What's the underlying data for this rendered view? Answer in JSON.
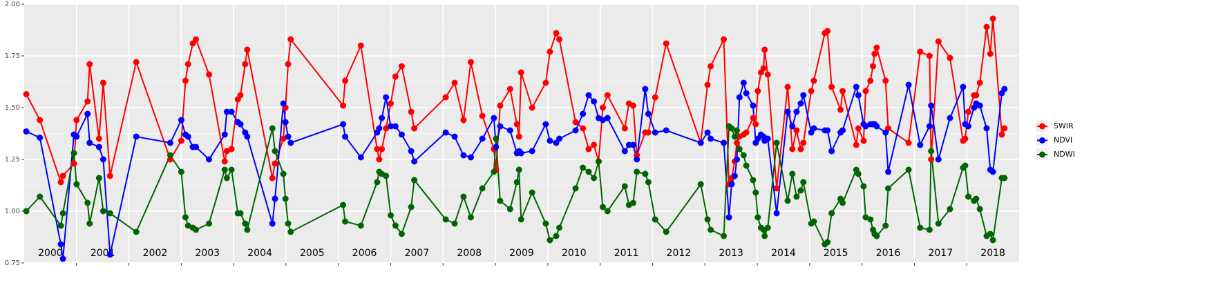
{
  "chart_data": {
    "type": "line",
    "x": [
      2000.04,
      2000.3,
      2000.7,
      2000.74,
      2000.95,
      2001.0,
      2001.21,
      2001.25,
      2001.43,
      2001.51,
      2001.64,
      2002.14,
      2002.79,
      2003.0,
      2003.08,
      2003.13,
      2003.22,
      2003.28,
      2003.53,
      2003.83,
      2003.87,
      2003.96,
      2004.08,
      2004.13,
      2004.22,
      2004.26,
      2004.74,
      2004.79,
      2004.95,
      2004.99,
      2005.04,
      2005.09,
      2006.09,
      2006.13,
      2006.43,
      2006.74,
      2006.78,
      2006.83,
      2006.91,
      2007.0,
      2007.09,
      2007.21,
      2007.39,
      2007.45,
      2008.05,
      2008.22,
      2008.39,
      2008.53,
      2008.75,
      2008.97,
      2009.01,
      2009.09,
      2009.28,
      2009.41,
      2009.45,
      2009.49,
      2009.7,
      2009.96,
      2010.04,
      2010.16,
      2010.22,
      2010.53,
      2010.67,
      2010.78,
      2010.88,
      2010.97,
      2011.05,
      2011.14,
      2011.47,
      2011.55,
      2011.63,
      2011.7,
      2011.86,
      2011.92,
      2012.05,
      2012.26,
      2012.92,
      2013.05,
      2013.11,
      2013.36,
      2013.46,
      2013.51,
      2013.57,
      2013.61,
      2013.66,
      2013.74,
      2013.79,
      2013.92,
      2013.97,
      2014.01,
      2014.07,
      2014.12,
      2014.14,
      2014.2,
      2014.37,
      2014.58,
      2014.67,
      2014.75,
      2014.83,
      2014.88,
      2015.03,
      2015.08,
      2015.29,
      2015.34,
      2015.42,
      2015.59,
      2015.63,
      2015.89,
      2015.93,
      2016.03,
      2016.07,
      2016.16,
      2016.21,
      2016.24,
      2016.28,
      2016.45,
      2016.5,
      2016.89,
      2017.11,
      2017.29,
      2017.32,
      2017.46,
      2017.68,
      2017.93,
      2017.97,
      2018.03,
      2018.14,
      2018.18,
      2018.25,
      2018.38,
      2018.45,
      2018.5,
      2018.67,
      2018.72
    ],
    "series": [
      {
        "name": "SWIR",
        "color": "#ff0000",
        "values": [
          1.565,
          1.44,
          1.14,
          1.17,
          1.23,
          1.44,
          1.53,
          1.71,
          1.35,
          1.62,
          1.17,
          1.72,
          1.25,
          1.34,
          1.63,
          1.71,
          1.81,
          1.83,
          1.66,
          1.24,
          1.29,
          1.3,
          1.54,
          1.56,
          1.71,
          1.78,
          1.16,
          1.23,
          1.35,
          1.5,
          1.71,
          1.83,
          1.51,
          1.63,
          1.8,
          1.3,
          1.25,
          1.3,
          1.4,
          1.52,
          1.65,
          1.7,
          1.48,
          1.4,
          1.55,
          1.62,
          1.44,
          1.72,
          1.46,
          1.3,
          1.2,
          1.51,
          1.59,
          1.42,
          1.36,
          1.67,
          1.5,
          1.62,
          1.77,
          1.86,
          1.83,
          1.43,
          1.4,
          1.3,
          1.32,
          1.24,
          1.5,
          1.56,
          1.4,
          1.52,
          1.51,
          1.27,
          1.38,
          1.38,
          1.55,
          1.81,
          1.33,
          1.61,
          1.7,
          1.83,
          1.13,
          1.16,
          1.24,
          1.33,
          1.36,
          1.37,
          1.38,
          1.45,
          1.42,
          1.58,
          1.67,
          1.69,
          1.78,
          1.66,
          1.11,
          1.6,
          1.3,
          1.39,
          1.3,
          1.33,
          1.58,
          1.63,
          1.86,
          1.87,
          1.6,
          1.49,
          1.58,
          1.32,
          1.4,
          1.34,
          1.58,
          1.63,
          1.7,
          1.76,
          1.79,
          1.63,
          1.4,
          1.33,
          1.77,
          1.75,
          1.25,
          1.82,
          1.74,
          1.34,
          1.35,
          1.48,
          1.56,
          1.56,
          1.62,
          1.89,
          1.76,
          1.93,
          1.37,
          1.4
        ]
      },
      {
        "name": "NDVI",
        "color": "#0000ff",
        "values": [
          1.385,
          1.355,
          0.84,
          0.77,
          1.37,
          1.36,
          1.47,
          1.33,
          1.31,
          1.25,
          0.79,
          1.36,
          1.33,
          1.44,
          1.37,
          1.36,
          1.31,
          1.31,
          1.25,
          1.37,
          1.48,
          1.48,
          1.43,
          1.42,
          1.38,
          1.36,
          0.94,
          1.06,
          1.52,
          1.43,
          1.36,
          1.33,
          1.42,
          1.36,
          1.26,
          1.38,
          1.4,
          1.45,
          1.55,
          1.41,
          1.41,
          1.37,
          1.29,
          1.24,
          1.38,
          1.36,
          1.27,
          1.26,
          1.35,
          1.45,
          1.31,
          1.41,
          1.39,
          1.28,
          1.29,
          1.28,
          1.29,
          1.42,
          1.34,
          1.33,
          1.35,
          1.39,
          1.47,
          1.56,
          1.53,
          1.45,
          1.44,
          1.45,
          1.29,
          1.32,
          1.32,
          1.25,
          1.59,
          1.47,
          1.38,
          1.39,
          1.33,
          1.38,
          1.35,
          1.33,
          0.97,
          1.13,
          1.17,
          1.25,
          1.55,
          1.62,
          1.57,
          1.51,
          1.33,
          1.35,
          1.37,
          1.36,
          1.34,
          1.35,
          0.99,
          1.48,
          1.41,
          1.48,
          1.52,
          1.56,
          1.38,
          1.4,
          1.39,
          1.39,
          1.29,
          1.38,
          1.39,
          1.6,
          1.56,
          1.42,
          1.41,
          1.42,
          1.42,
          1.42,
          1.41,
          1.38,
          1.19,
          1.61,
          1.32,
          1.41,
          1.51,
          1.25,
          1.45,
          1.6,
          1.42,
          1.41,
          1.5,
          1.52,
          1.51,
          1.4,
          1.2,
          1.19,
          1.57,
          1.59
        ]
      },
      {
        "name": "NDWI",
        "color": "#006400",
        "values": [
          1.0,
          1.07,
          0.93,
          0.99,
          1.28,
          1.13,
          1.04,
          0.94,
          1.16,
          1.0,
          0.99,
          0.9,
          1.27,
          1.19,
          0.97,
          0.93,
          0.92,
          0.91,
          0.94,
          1.2,
          1.16,
          1.2,
          0.99,
          0.99,
          0.94,
          0.91,
          1.4,
          1.29,
          1.18,
          1.06,
          0.94,
          0.9,
          1.03,
          0.95,
          0.93,
          1.14,
          1.19,
          1.18,
          1.17,
          0.98,
          0.93,
          0.89,
          1.02,
          1.15,
          0.96,
          0.94,
          1.07,
          0.97,
          1.11,
          1.19,
          1.35,
          1.05,
          1.01,
          1.14,
          1.2,
          0.96,
          1.09,
          0.94,
          0.86,
          0.88,
          0.92,
          1.11,
          1.21,
          1.19,
          1.16,
          1.24,
          1.02,
          1.0,
          1.12,
          1.03,
          1.04,
          1.19,
          1.18,
          1.14,
          0.96,
          0.9,
          1.13,
          0.96,
          0.91,
          0.88,
          1.41,
          1.4,
          1.36,
          1.39,
          1.3,
          1.27,
          1.22,
          1.15,
          1.09,
          0.97,
          0.92,
          0.91,
          0.88,
          0.92,
          1.33,
          1.05,
          1.18,
          1.07,
          1.1,
          1.14,
          0.94,
          0.95,
          0.84,
          0.85,
          0.99,
          1.06,
          1.04,
          1.2,
          1.18,
          1.12,
          0.97,
          0.96,
          0.91,
          0.89,
          0.88,
          0.93,
          1.11,
          1.2,
          0.92,
          0.91,
          1.29,
          0.94,
          1.01,
          1.21,
          1.22,
          1.07,
          1.05,
          1.06,
          1.01,
          0.88,
          0.89,
          0.86,
          1.16,
          1.16
        ]
      }
    ],
    "xlim": [
      2000,
      2019
    ],
    "xticks": [
      2001,
      2002,
      2003,
      2004,
      2005,
      2006,
      2007,
      2008,
      2009,
      2010,
      2011,
      2012,
      2013,
      2014,
      2015,
      2016,
      2017,
      2018
    ],
    "ylim": [
      0.75,
      2.0
    ],
    "yticks": [
      {
        "value": 0.75,
        "label": "0.75"
      },
      {
        "value": 1.0,
        "label": "1.00"
      },
      {
        "value": 1.25,
        "label": "1.25"
      },
      {
        "value": 1.5,
        "label": "1.50"
      },
      {
        "value": 1.75,
        "label": "1.75"
      },
      {
        "value": 2.0,
        "label": "2.00"
      }
    ],
    "annotations": [
      {
        "x": 2000.5,
        "text": "2000"
      },
      {
        "x": 2001.5,
        "text": "2001"
      },
      {
        "x": 2002.5,
        "text": "2002"
      },
      {
        "x": 2003.5,
        "text": "2003"
      },
      {
        "x": 2004.5,
        "text": "2004"
      },
      {
        "x": 2005.5,
        "text": "2005"
      },
      {
        "x": 2006.5,
        "text": "2006"
      },
      {
        "x": 2007.5,
        "text": "2007"
      },
      {
        "x": 2008.5,
        "text": "2008"
      },
      {
        "x": 2009.5,
        "text": "2009"
      },
      {
        "x": 2010.5,
        "text": "2010"
      },
      {
        "x": 2011.5,
        "text": "2011"
      },
      {
        "x": 2012.5,
        "text": "2012"
      },
      {
        "x": 2013.5,
        "text": "2013"
      },
      {
        "x": 2014.5,
        "text": "2014"
      },
      {
        "x": 2015.5,
        "text": "2015"
      },
      {
        "x": 2016.5,
        "text": "2016"
      },
      {
        "x": 2017.5,
        "text": "2017"
      },
      {
        "x": 2018.5,
        "text": "2018"
      }
    ],
    "grid": true,
    "legend": "right"
  }
}
